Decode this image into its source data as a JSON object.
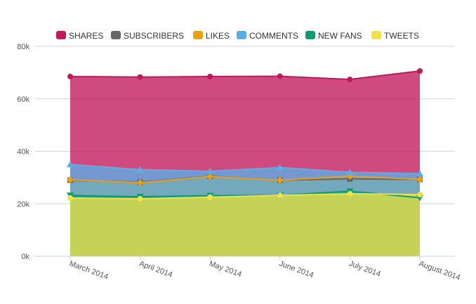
{
  "chart_data": {
    "type": "area",
    "categories": [
      "March 2014",
      "April 2014",
      "May 2014",
      "June 2014",
      "July 2014",
      "August 2014"
    ],
    "series": [
      {
        "name": "SHARES",
        "color": "#c2185b",
        "marker": "circle",
        "values": [
          68500,
          68300,
          68500,
          68600,
          67400,
          70600
        ]
      },
      {
        "name": "SUBSCRIBERS",
        "color": "#666666",
        "marker": "square",
        "values": [
          29000,
          28200,
          30500,
          29000,
          29500,
          29300
        ]
      },
      {
        "name": "LIKES",
        "color": "#e6a117",
        "marker": "diamond",
        "values": [
          29200,
          28000,
          30400,
          29000,
          30500,
          29300
        ]
      },
      {
        "name": "COMMENTS",
        "color": "#5aaee5",
        "marker": "triangle",
        "values": [
          35000,
          33000,
          32400,
          33800,
          32000,
          31500
        ]
      },
      {
        "name": "NEW FANS",
        "color": "#0f9d6e",
        "marker": "triangle-down",
        "values": [
          23200,
          22700,
          23100,
          23200,
          24800,
          22300
        ]
      },
      {
        "name": "TWEETS",
        "color": "#f2e04a",
        "marker": "circle",
        "values": [
          22200,
          21900,
          22500,
          23200,
          23800,
          23500
        ]
      }
    ],
    "yticks": [
      "0k",
      "20k",
      "40k",
      "60k",
      "80k"
    ],
    "ylim": [
      0,
      80000
    ],
    "grid": true,
    "legend_position": "top"
  }
}
